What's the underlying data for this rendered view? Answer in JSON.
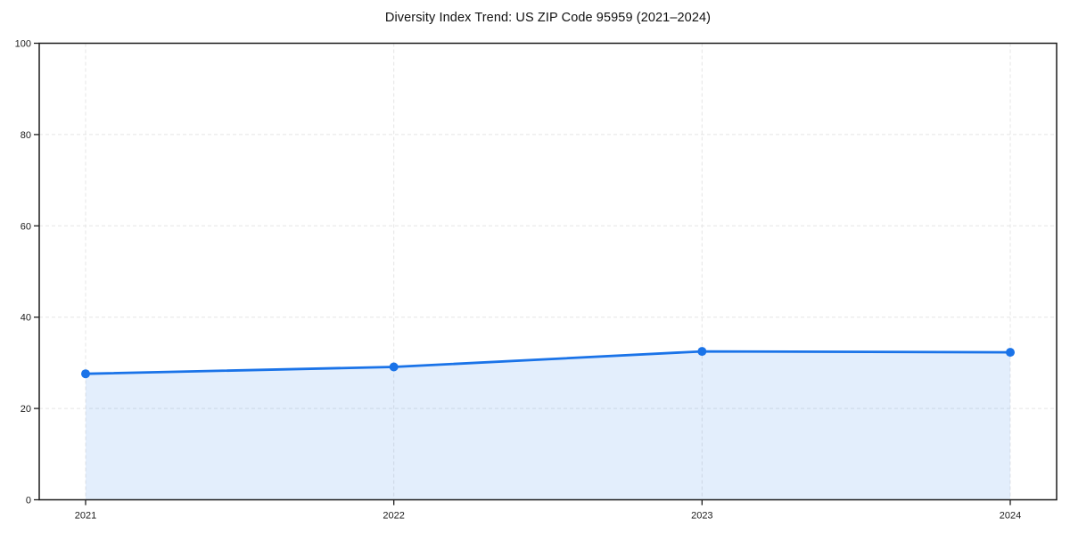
{
  "figure": {
    "title": "Diversity Index Trend: US ZIP Code 95959 (2021–2024)"
  },
  "chart_data": {
    "type": "area",
    "title": "Diversity Index Trend: US ZIP Code 95959 (2021–2024)",
    "x": [
      "2021",
      "2022",
      "2023",
      "2024"
    ],
    "series": [
      {
        "name": "Diversity Index",
        "values": [
          27.6,
          29.1,
          32.5,
          32.3
        ]
      }
    ],
    "xlabel": "",
    "ylabel": "",
    "ylim": [
      0,
      100
    ],
    "yticks": [
      0,
      20,
      40,
      60,
      80,
      100
    ],
    "grid": true,
    "grid_style": "dashed",
    "legend_position": "none",
    "marker": "circle",
    "colors": {
      "line": "#1a73e8",
      "marker": "#1a73e8",
      "fill": "rgba(26,115,232,0.12)",
      "grid": "#e5e5e5",
      "spine": "#1c1c1c",
      "tick_label": "#1c1c1c",
      "title": "#111111"
    }
  }
}
